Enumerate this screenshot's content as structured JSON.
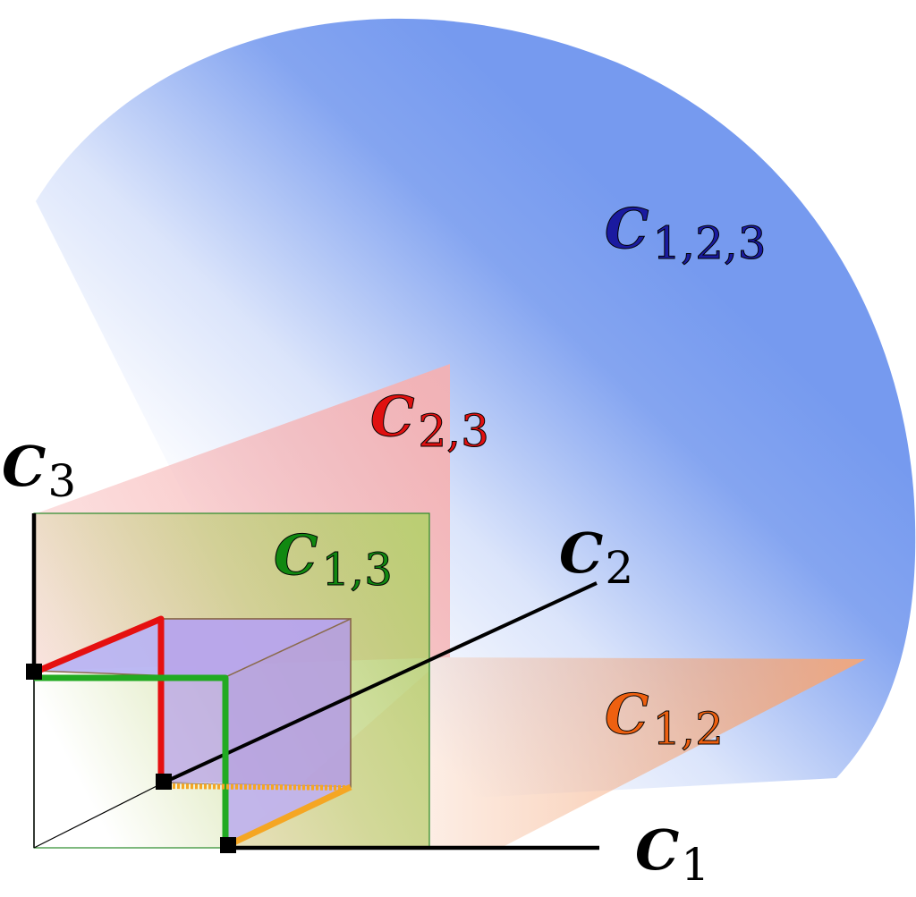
{
  "labels": {
    "c123": {
      "main": "C",
      "sub": "1,2,3",
      "color": "#1a1aa0"
    },
    "c23": {
      "main": "C",
      "sub": "2,3",
      "color": "#e01010"
    },
    "c13": {
      "main": "C",
      "sub": "1,3",
      "color": "#118811"
    },
    "c12": {
      "main": "C",
      "sub": "1,2",
      "color": "#ee6010"
    },
    "c3": {
      "main": "C",
      "sub": "3",
      "color": "#000000"
    },
    "c2": {
      "main": "C",
      "sub": "2",
      "color": "#000000"
    },
    "c1": {
      "main": "C",
      "sub": "1",
      "color": "#000000"
    }
  },
  "colors": {
    "blue_region": "#6f95ee",
    "pink_plane": "#f7b0b0",
    "green_plane": "#b8cf70",
    "orange_plane": "#f4a77a",
    "cube_fill": "#b0a8f0",
    "red_edge": "#e51010",
    "green_edge": "#22aa22",
    "orange_edge": "#f5a623",
    "axis": "#000000"
  }
}
